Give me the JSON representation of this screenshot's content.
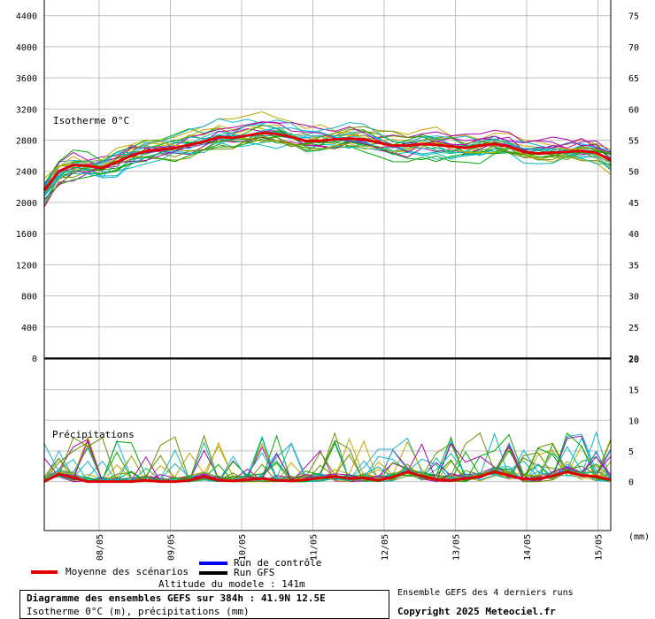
{
  "chart_data": {
    "type": "line",
    "panels": [
      {
        "name": "isotherm",
        "label": "Isotherme 0°C",
        "y_left_ticks": [
          4400,
          4000,
          3600,
          3200,
          2800,
          2400,
          2000,
          1600,
          1200,
          800,
          400,
          0
        ],
        "y_right_ticks": [
          75,
          70,
          65,
          60,
          55,
          50,
          45,
          40,
          35,
          30,
          25,
          20
        ],
        "ylim": [
          0,
          4600
        ],
        "mean_series": {
          "name": "Moyenne des scénarios",
          "values": [
            2150,
            2400,
            2480,
            2470,
            2440,
            2520,
            2600,
            2660,
            2680,
            2700,
            2740,
            2780,
            2840,
            2830,
            2860,
            2890,
            2880,
            2840,
            2790,
            2790,
            2810,
            2820,
            2810,
            2770,
            2730,
            2730,
            2750,
            2740,
            2720,
            2700,
            2730,
            2750,
            2720,
            2650,
            2630,
            2640,
            2650,
            2660,
            2640,
            2540
          ]
        }
      },
      {
        "name": "precip",
        "label": "Précipitations",
        "y_right_ticks": [
          20,
          15,
          10,
          5,
          0
        ],
        "ylim": [
          -8,
          20
        ],
        "mean_series": {
          "name": "Moyenne des scénarios",
          "values": [
            0,
            1.2,
            0.6,
            0,
            0,
            0,
            0,
            0.2,
            0,
            0,
            0.2,
            0.8,
            0.2,
            0.1,
            0.3,
            0.5,
            0.2,
            0.1,
            0.3,
            0.6,
            0.8,
            0.5,
            0.6,
            0.2,
            0.7,
            1.6,
            0.9,
            0.3,
            0.2,
            0.5,
            0.8,
            1.6,
            1.0,
            0.4,
            0.4,
            0.9,
            1.6,
            1.0,
            0.8,
            0.3
          ]
        }
      }
    ],
    "x_tick_labels": [
      "08/05",
      "09/05",
      "10/05",
      "11/05",
      "12/05",
      "13/05",
      "14/05",
      "15/05"
    ],
    "unit_label": "(mm)",
    "colors": {
      "mean": "#e00000",
      "control": "#0000ff",
      "gfs": "#000000",
      "ensemble": [
        "#00aa00",
        "#1ab0d0",
        "#c0a800",
        "#b000b0",
        "#00b8b8",
        "#6a8f00"
      ]
    }
  },
  "legend": {
    "mean_label": "Moyenne des scénarios",
    "control_label": "Run de contrôle",
    "gfs_label": "Run GFS",
    "altitude_label": "Altitude du modele : 141m"
  },
  "footer": {
    "title": "Diagramme des ensembles GEFS sur 384h : 41.9N 12.5E",
    "subtitle": "Isotherme 0°C (m), précipitations (mm)",
    "runs_label": "Ensemble GEFS des 4 derniers runs",
    "copyright": "Copyright 2025 Meteociel.fr"
  }
}
